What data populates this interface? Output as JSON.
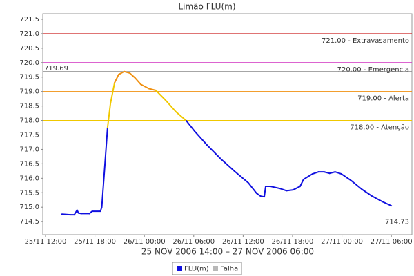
{
  "chart_data": {
    "type": "line",
    "title": "Limão FLU(m)",
    "x_label": "25 NOV 2006 14:00 – 27 NOV 2006 06:00",
    "x": [
      "2006-11-25T14:00",
      "2006-11-25T15:00",
      "2006-11-25T15:30",
      "2006-11-25T15:50",
      "2006-11-25T16:00",
      "2006-11-25T16:20",
      "2006-11-25T17:20",
      "2006-11-25T17:40",
      "2006-11-25T18:40",
      "2006-11-25T18:50",
      "2006-11-25T19:12",
      "2006-11-25T19:32",
      "2006-11-25T19:53",
      "2006-11-25T20:23",
      "2006-11-25T20:53",
      "2006-11-25T21:33",
      "2006-11-25T22:13",
      "2006-11-25T22:53",
      "2006-11-25T23:34",
      "2006-11-26T00:34",
      "2006-11-26T01:24",
      "2006-11-26T02:35",
      "2006-11-26T03:50",
      "2006-11-26T05:06",
      "2006-11-26T06:06",
      "2006-11-26T07:37",
      "2006-11-26T09:17",
      "2006-11-26T10:58",
      "2006-11-26T12:38",
      "2006-11-26T13:38",
      "2006-11-26T14:08",
      "2006-11-26T14:34",
      "2006-11-26T14:44",
      "2006-11-26T15:19",
      "2006-11-26T16:25",
      "2006-11-26T17:15",
      "2006-11-26T18:05",
      "2006-11-26T18:55",
      "2006-11-26T19:20",
      "2006-11-26T20:25",
      "2006-11-26T21:10",
      "2006-11-26T21:50",
      "2006-11-26T22:30",
      "2006-11-26T23:10",
      "2006-11-26T23:56",
      "2006-11-27T01:10",
      "2006-11-27T02:25",
      "2006-11-27T03:40",
      "2006-11-27T04:55",
      "2006-11-27T06:00"
    ],
    "series": [
      {
        "name": "FLU(m)",
        "color": "#1010e0",
        "values": [
          714.76,
          714.74,
          714.74,
          714.9,
          714.8,
          714.78,
          714.78,
          714.86,
          714.86,
          715.0,
          716.43,
          717.75,
          718.58,
          719.3,
          719.59,
          719.69,
          719.64,
          719.47,
          719.25,
          719.1,
          719.04,
          718.7,
          718.3,
          717.99,
          717.63,
          717.15,
          716.67,
          716.24,
          715.84,
          715.48,
          715.38,
          715.36,
          715.72,
          715.72,
          715.65,
          715.57,
          715.6,
          715.72,
          715.96,
          716.15,
          716.22,
          716.22,
          716.17,
          716.22,
          716.15,
          715.91,
          715.62,
          715.38,
          715.19,
          715.05
        ]
      },
      {
        "name": "Falha",
        "color": "#b8b8b8",
        "values": [
          null,
          null,
          null,
          null,
          null,
          null,
          null,
          null,
          null,
          null,
          null,
          null,
          null,
          null,
          null,
          null,
          null,
          null,
          null,
          null,
          null,
          null,
          null,
          null,
          null,
          null,
          null,
          null,
          null,
          null,
          null,
          null,
          null,
          null,
          null,
          null,
          null,
          null,
          null,
          null,
          null,
          null,
          null,
          null,
          null,
          null,
          null,
          null,
          null,
          null
        ]
      }
    ],
    "thresholds": [
      {
        "value": 721,
        "label": "721.00 - Extravasamento",
        "color": "#cc2020"
      },
      {
        "value": 720,
        "label": "720.00 - Emergencia",
        "color": "#d030c0"
      },
      {
        "value": 719,
        "label": "719.00 - Alerta",
        "color": "#f09010"
      },
      {
        "value": 718,
        "label": "718.00 - Atenção",
        "color": "#f0c800"
      }
    ],
    "extremes": [
      719.69,
      714.73
    ],
    "xlim": [
      "2006-11-25T11:40",
      "2006-11-27T08:30"
    ],
    "xticks": [
      {
        "value": "2006-11-25T12:00",
        "label": "25/11 12:00"
      },
      {
        "value": "2006-11-25T18:00",
        "label": "25/11 18:00"
      },
      {
        "value": "2006-11-26T00:00",
        "label": "26/11 00:00"
      },
      {
        "value": "2006-11-26T06:00",
        "label": "26/11 06:00"
      },
      {
        "value": "2006-11-26T12:00",
        "label": "26/11 12:00"
      },
      {
        "value": "2006-11-26T18:00",
        "label": "26/11 18:00"
      },
      {
        "value": "2006-11-27T00:00",
        "label": "27/11 00:00"
      },
      {
        "value": "2006-11-27T06:00",
        "label": "27/11 06:00"
      }
    ],
    "ylim": [
      714.05,
      721.69
    ],
    "yticks": [
      714.5,
      {
        "value": 715,
        "label": "715.0"
      },
      715.5,
      {
        "value": 716,
        "label": "716.0"
      },
      716.5,
      {
        "value": 717,
        "label": "717.0"
      },
      717.5,
      {
        "value": 718,
        "label": "718.0"
      },
      718.5,
      {
        "value": 719,
        "label": "719.0"
      },
      719.5,
      {
        "value": 720,
        "label": "720.0"
      },
      720.5,
      {
        "value": 721,
        "label": "721.0"
      },
      721.5
    ]
  }
}
